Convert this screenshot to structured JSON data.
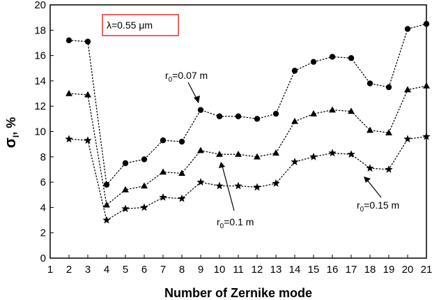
{
  "chart_data": {
    "type": "line",
    "title": "",
    "xlabel": "Number of Zernike mode",
    "ylabel_main": "σ",
    "ylabel_sub": "I",
    "ylabel_rest": ", %",
    "xlim": [
      1,
      21
    ],
    "ylim": [
      0,
      20
    ],
    "x_ticks": [
      1,
      2,
      3,
      4,
      5,
      6,
      7,
      8,
      9,
      10,
      11,
      12,
      13,
      14,
      15,
      16,
      17,
      18,
      19,
      20,
      21
    ],
    "y_ticks": [
      0,
      2,
      4,
      6,
      8,
      10,
      12,
      14,
      16,
      18,
      20
    ],
    "x": [
      2,
      3,
      4,
      5,
      6,
      7,
      8,
      9,
      10,
      11,
      12,
      13,
      14,
      15,
      16,
      17,
      18,
      19,
      20,
      21
    ],
    "series": [
      {
        "marker": "circle",
        "values": [
          17.2,
          17.1,
          5.8,
          7.5,
          7.8,
          9.3,
          9.2,
          11.7,
          11.2,
          11.2,
          11.0,
          11.4,
          14.8,
          15.5,
          15.9,
          15.8,
          13.8,
          13.5,
          18.1,
          18.5
        ]
      },
      {
        "marker": "triangle",
        "values": [
          13.0,
          12.9,
          4.2,
          5.4,
          5.7,
          6.8,
          6.7,
          8.5,
          8.2,
          8.2,
          8.0,
          8.3,
          10.8,
          11.4,
          11.7,
          11.6,
          10.1,
          9.9,
          13.3,
          13.6
        ]
      },
      {
        "marker": "star",
        "values": [
          9.4,
          9.3,
          3.0,
          3.9,
          4.0,
          4.8,
          4.7,
          6.0,
          5.7,
          5.7,
          5.6,
          5.9,
          7.6,
          8.0,
          8.3,
          8.2,
          7.1,
          7.0,
          9.4,
          9.6
        ]
      }
    ],
    "annotations": {
      "lambda": "λ=0.55 μm",
      "a1": {
        "r": "r",
        "sub": "0",
        "rest": "=0.07 m"
      },
      "a2": {
        "r": "r",
        "sub": "0",
        "rest": "=0.1 m"
      },
      "a3": {
        "r": "r",
        "sub": "0",
        "rest": "=0.15 m"
      }
    },
    "colors": {
      "line": "#000000",
      "box_border": "#e03030"
    },
    "grid": false,
    "legend": "none"
  }
}
